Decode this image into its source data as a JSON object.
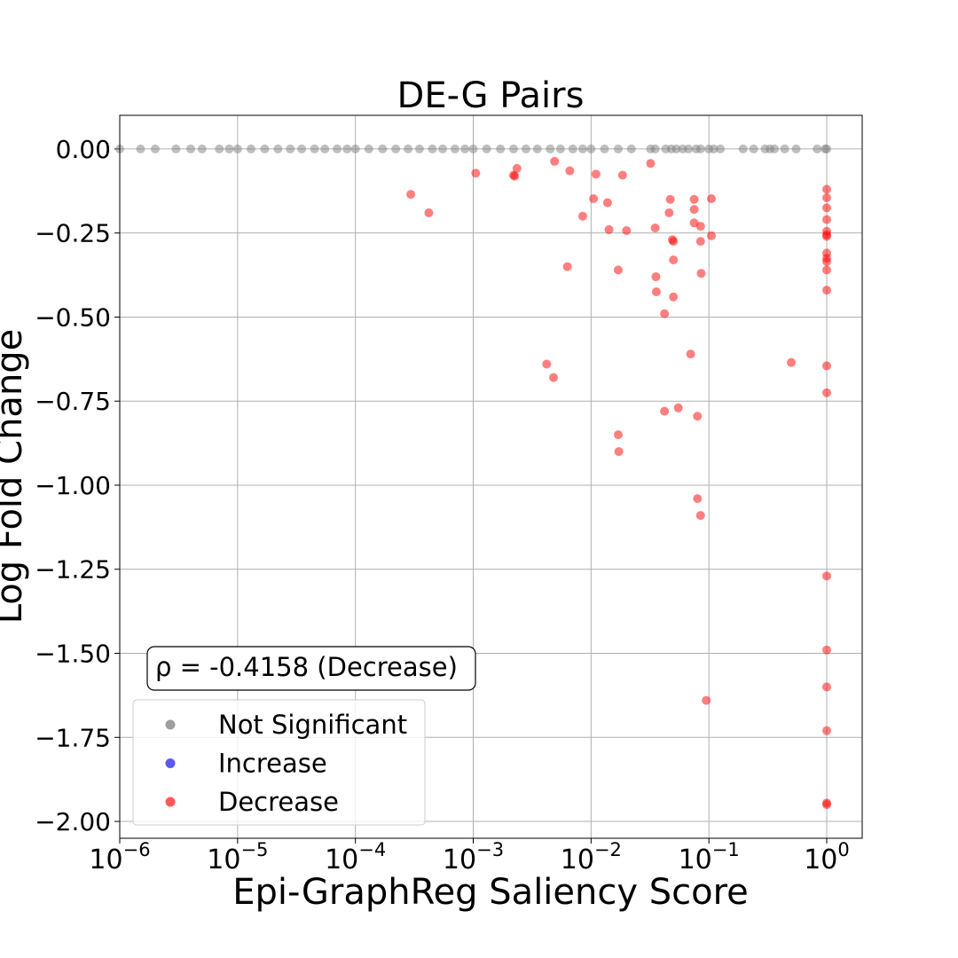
{
  "chart_data": {
    "type": "scatter",
    "title": "DE-G Pairs",
    "xlabel": "Epi-GraphReg Saliency Score",
    "ylabel": "Log Fold Change",
    "xscale": "log",
    "xlim": [
      1e-06,
      2
    ],
    "ylim": [
      -2.05,
      0.1
    ],
    "grid": true,
    "x_ticks": [
      {
        "value": 1e-06,
        "base": "10",
        "exp": "−6"
      },
      {
        "value": 1e-05,
        "base": "10",
        "exp": "−5"
      },
      {
        "value": 0.0001,
        "base": "10",
        "exp": "−4"
      },
      {
        "value": 0.001,
        "base": "10",
        "exp": "−3"
      },
      {
        "value": 0.01,
        "base": "10",
        "exp": "−2"
      },
      {
        "value": 0.1,
        "base": "10",
        "exp": "−1"
      },
      {
        "value": 1,
        "base": "10",
        "exp": "0"
      }
    ],
    "y_ticks": [
      {
        "value": 0,
        "label": "0.00"
      },
      {
        "value": -0.25,
        "label": "−0.25"
      },
      {
        "value": -0.5,
        "label": "−0.50"
      },
      {
        "value": -0.75,
        "label": "−0.75"
      },
      {
        "value": -1.0,
        "label": "−1.00"
      },
      {
        "value": -1.25,
        "label": "−1.25"
      },
      {
        "value": -1.5,
        "label": "−1.50"
      },
      {
        "value": -1.75,
        "label": "−1.75"
      },
      {
        "value": -2.0,
        "label": "−2.00"
      }
    ],
    "annotation": "ρ = -0.4158 (Decrease)",
    "legend": {
      "position": "lower-left",
      "entries": [
        {
          "label": "Not Significant",
          "color": "#9e9e9e"
        },
        {
          "label": "Increase",
          "color": "#5a5af0"
        },
        {
          "label": "Decrease",
          "color": "#ff5a5a"
        }
      ]
    },
    "series": [
      {
        "name": "Not Significant",
        "color": "#808080",
        "points": [
          [
            1e-06,
            0
          ],
          [
            1.5e-06,
            0
          ],
          [
            2e-06,
            0
          ],
          [
            3e-06,
            0
          ],
          [
            4e-06,
            0
          ],
          [
            5e-06,
            0
          ],
          [
            7e-06,
            0
          ],
          [
            8.5e-06,
            0
          ],
          [
            1e-05,
            0
          ],
          [
            1.3e-05,
            0
          ],
          [
            1.7e-05,
            0
          ],
          [
            2.2e-05,
            0
          ],
          [
            2.8e-05,
            0
          ],
          [
            3.5e-05,
            0
          ],
          [
            4.5e-05,
            0
          ],
          [
            5.5e-05,
            0
          ],
          [
            7e-05,
            0
          ],
          [
            8.5e-05,
            0
          ],
          [
            0.0001,
            0
          ],
          [
            0.00013,
            0
          ],
          [
            0.00017,
            0
          ],
          [
            0.00022,
            0
          ],
          [
            0.00028,
            0
          ],
          [
            0.00035,
            0
          ],
          [
            0.00045,
            0
          ],
          [
            0.00055,
            0
          ],
          [
            0.0007,
            0
          ],
          [
            0.00085,
            0
          ],
          [
            0.001,
            0
          ],
          [
            0.0013,
            0
          ],
          [
            0.0017,
            0
          ],
          [
            0.0022,
            0
          ],
          [
            0.0028,
            0
          ],
          [
            0.0035,
            0
          ],
          [
            0.0045,
            0
          ],
          [
            0.0055,
            0
          ],
          [
            0.007,
            0
          ],
          [
            0.0085,
            0
          ],
          [
            0.01,
            0
          ],
          [
            0.013,
            0
          ],
          [
            0.017,
            0
          ],
          [
            0.022,
            0
          ],
          [
            0.032,
            0
          ],
          [
            0.035,
            0
          ],
          [
            0.043,
            0
          ],
          [
            0.048,
            0
          ],
          [
            0.053,
            0
          ],
          [
            0.06,
            0
          ],
          [
            0.067,
            0
          ],
          [
            0.078,
            0
          ],
          [
            0.085,
            0
          ],
          [
            0.1,
            0
          ],
          [
            0.11,
            0
          ],
          [
            0.125,
            0
          ],
          [
            0.195,
            0
          ],
          [
            0.24,
            0
          ],
          [
            0.3,
            0
          ],
          [
            0.33,
            0
          ],
          [
            0.36,
            0
          ],
          [
            0.44,
            0
          ],
          [
            0.55,
            0
          ],
          [
            0.83,
            0
          ],
          [
            0.97,
            0
          ],
          [
            1.0,
            0
          ]
        ]
      },
      {
        "name": "Increase",
        "color": "#0000ff",
        "points": []
      },
      {
        "name": "Decrease",
        "color": "#ff0000",
        "points": [
          [
            0.000295,
            -0.135
          ],
          [
            0.00042,
            -0.19
          ],
          [
            0.00105,
            -0.072
          ],
          [
            0.0022,
            -0.078
          ],
          [
            0.00225,
            -0.081
          ],
          [
            0.00235,
            -0.058
          ],
          [
            0.0042,
            -0.64
          ],
          [
            0.0048,
            -0.68
          ],
          [
            0.0049,
            -0.037
          ],
          [
            0.0063,
            -0.35
          ],
          [
            0.0066,
            -0.065
          ],
          [
            0.0085,
            -0.2
          ],
          [
            0.0105,
            -0.148
          ],
          [
            0.011,
            -0.075
          ],
          [
            0.0138,
            -0.16
          ],
          [
            0.0142,
            -0.24
          ],
          [
            0.017,
            -0.36
          ],
          [
            0.017,
            -0.85
          ],
          [
            0.0172,
            -0.9
          ],
          [
            0.0185,
            -0.078
          ],
          [
            0.02,
            -0.243
          ],
          [
            0.032,
            -0.043
          ],
          [
            0.035,
            -0.235
          ],
          [
            0.0355,
            -0.38
          ],
          [
            0.0358,
            -0.425
          ],
          [
            0.042,
            -0.49
          ],
          [
            0.042,
            -0.78
          ],
          [
            0.046,
            -0.19
          ],
          [
            0.047,
            -0.15
          ],
          [
            0.049,
            -0.27
          ],
          [
            0.05,
            -0.275
          ],
          [
            0.05,
            -0.33
          ],
          [
            0.05,
            -0.44
          ],
          [
            0.055,
            -0.77
          ],
          [
            0.07,
            -0.61
          ],
          [
            0.075,
            -0.15
          ],
          [
            0.075,
            -0.18
          ],
          [
            0.075,
            -0.22
          ],
          [
            0.08,
            -0.795
          ],
          [
            0.08,
            -1.04
          ],
          [
            0.085,
            -0.23
          ],
          [
            0.085,
            -0.275
          ],
          [
            0.086,
            -0.37
          ],
          [
            0.085,
            -1.09
          ],
          [
            0.095,
            -1.64
          ],
          [
            0.105,
            -0.148
          ],
          [
            0.105,
            -0.258
          ],
          [
            0.5,
            -0.635
          ],
          [
            1,
            -0.12
          ],
          [
            1,
            -0.145
          ],
          [
            1,
            -0.175
          ],
          [
            1,
            -0.21
          ],
          [
            1,
            -0.245
          ],
          [
            1,
            -0.255
          ],
          [
            1,
            -0.26
          ],
          [
            1,
            -0.31
          ],
          [
            1,
            -0.325
          ],
          [
            1,
            -0.335
          ],
          [
            1,
            -0.36
          ],
          [
            1,
            -0.42
          ],
          [
            1,
            -0.645
          ],
          [
            1,
            -0.725
          ],
          [
            1,
            -1.27
          ],
          [
            1,
            -1.49
          ],
          [
            1,
            -1.6
          ],
          [
            1,
            -1.73
          ],
          [
            1,
            -1.945
          ],
          [
            1,
            -1.95
          ]
        ]
      }
    ]
  }
}
